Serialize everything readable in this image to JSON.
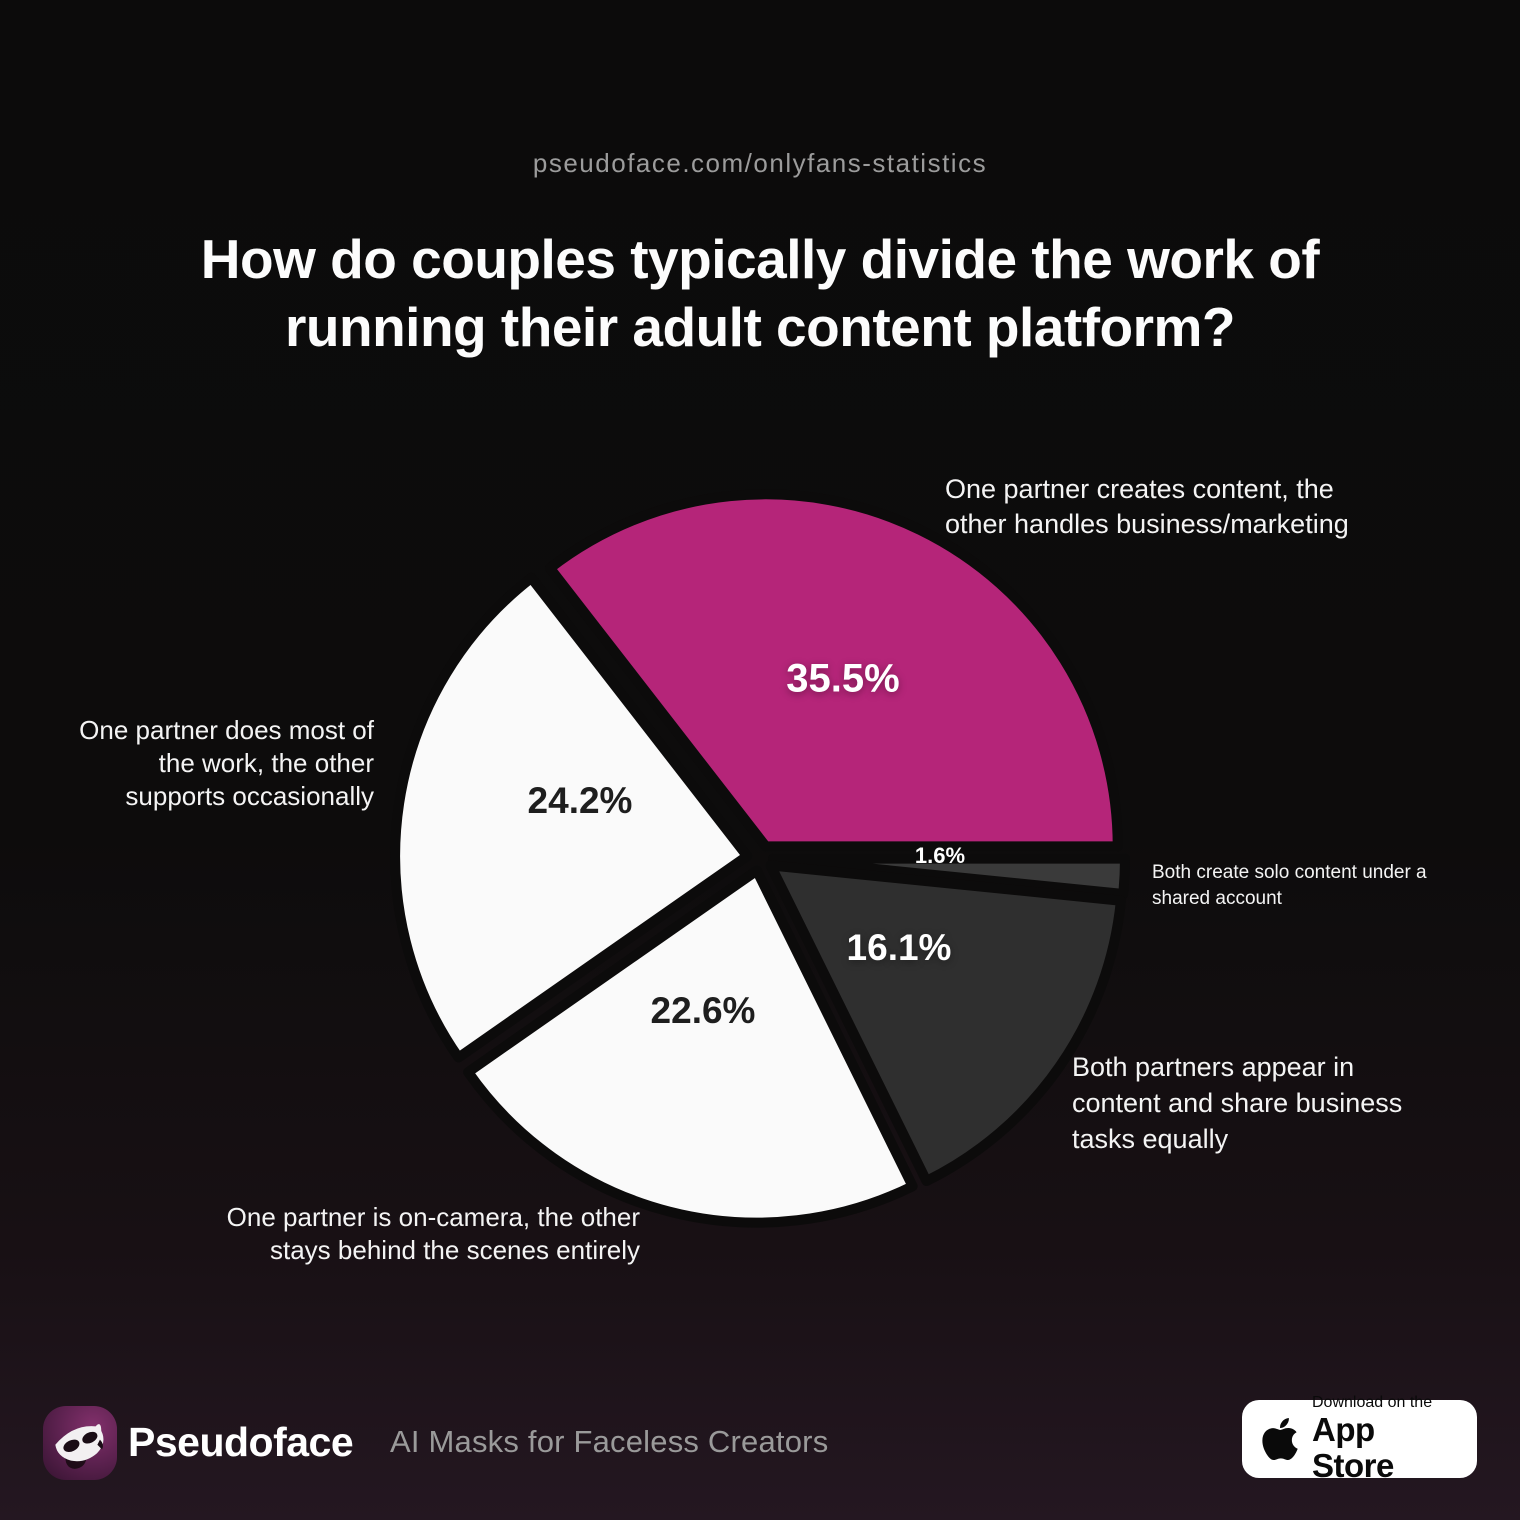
{
  "header": {
    "url": "pseudoface.com/onlyfans-statistics",
    "title": "How do couples typically divide the work of running their adult content platform?"
  },
  "chart_data": {
    "type": "pie",
    "title": "How do couples typically divide the work of running their adult content platform?",
    "unit": "percent",
    "start_angle_deg": 127.8,
    "direction": "clockwise",
    "legend_position": "labels-around-pie",
    "slices": [
      {
        "label": "One partner creates content, the other handles business/marketing",
        "value": 35.5,
        "value_label": "35.5%",
        "color": "#B52579",
        "text_color": "#FFFFFF"
      },
      {
        "label": "Both create solo content under a shared account",
        "value": 1.6,
        "value_label": "1.6%",
        "color": "#3A3A3A",
        "text_color": "#FFFFFF"
      },
      {
        "label": "Both partners appear in content and share business tasks equally",
        "value": 16.1,
        "value_label": "16.1%",
        "color": "#2F2F2F",
        "text_color": "#FFFFFF"
      },
      {
        "label": "One partner is on-camera, the other stays behind the scenes entirely",
        "value": 22.6,
        "value_label": "22.6%",
        "color": "#FAFAFA",
        "text_color": "#1E1E1E"
      },
      {
        "label": "One partner does most of the work, the other supports occasionally",
        "value": 24.2,
        "value_label": "24.2%",
        "color": "#FAFAFA",
        "text_color": "#1E1E1E"
      }
    ]
  },
  "footer": {
    "brand": "Pseudoface",
    "tagline": "AI Masks for Faceless Creators",
    "appstore_badge": {
      "line1": "Download on the",
      "line2": "App Store"
    }
  },
  "colors": {
    "accent": "#B52579",
    "background_top": "#0C0B0B",
    "background_bottom": "#241721",
    "muted_text": "#9C9C9C"
  }
}
